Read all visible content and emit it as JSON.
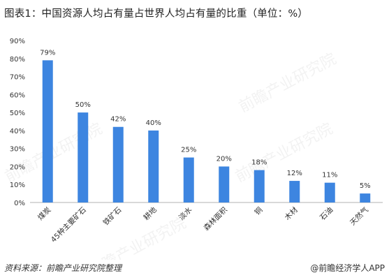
{
  "chart_data": {
    "type": "bar",
    "title": "图表1：中国资源人均占有量占世界人均占有量的比重（单位：%）",
    "categories": [
      "煤炭",
      "45种主要矿石",
      "铁矿石",
      "耕地",
      "淡水",
      "森林面积",
      "铜",
      "木材",
      "石油",
      "天然气"
    ],
    "values": [
      79,
      50,
      42,
      40,
      25,
      20,
      18,
      12,
      11,
      5
    ],
    "data_labels": [
      "79%",
      "50%",
      "42%",
      "40%",
      "25%",
      "20%",
      "18%",
      "12%",
      "11%",
      "5%"
    ],
    "ylim": [
      0,
      90
    ],
    "yticks": [
      "0%",
      "10%",
      "20%",
      "30%",
      "40%",
      "50%",
      "60%",
      "70%",
      "80%",
      "90%"
    ],
    "xlabel": "",
    "ylabel": "",
    "bar_color": "#3d85e0",
    "grid": false,
    "legend": "none"
  },
  "footer": {
    "source": "资料来源：前瞻产业研究院整理",
    "brand": "@前瞻经济学人APP"
  },
  "watermark": {
    "text": "前瞻产业研究院"
  }
}
